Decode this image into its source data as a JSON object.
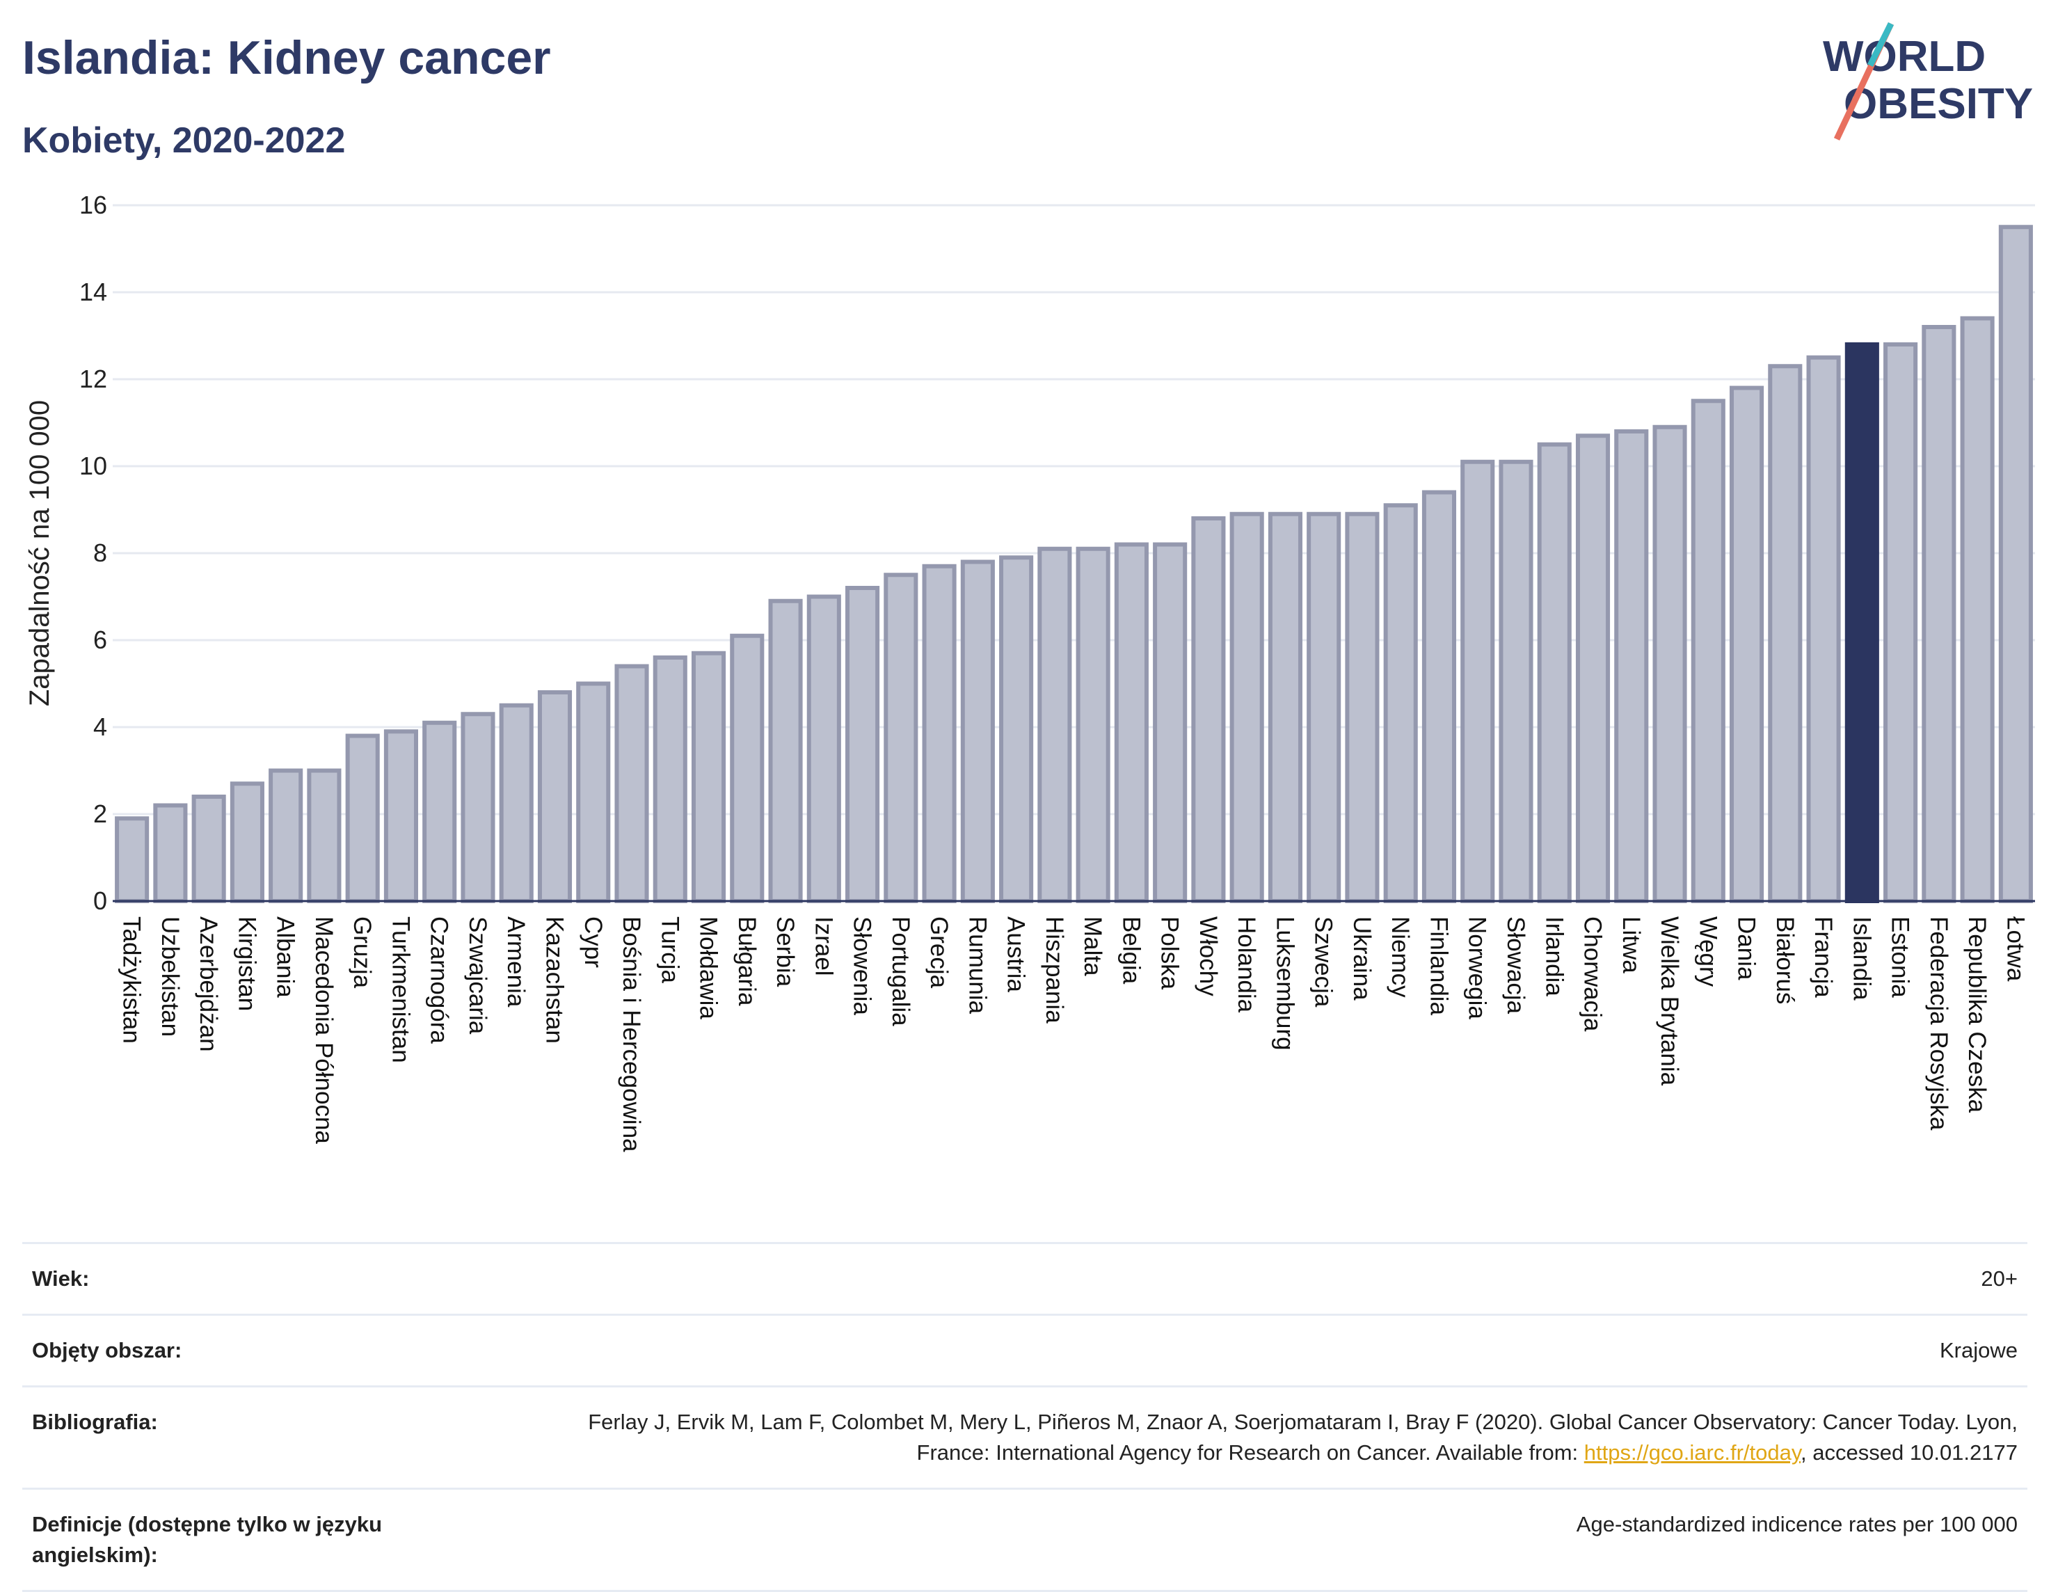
{
  "header": {
    "title": "Islandia: Kidney cancer",
    "subtitle": "Kobiety, 2020-2022"
  },
  "logo": {
    "line1": "WORLD",
    "line2": "OBESITY"
  },
  "colors": {
    "bar": "#bcc0cf",
    "bar_border": "#9498ae",
    "highlight": "#2b3560",
    "grid": "#e6e9f0"
  },
  "chart_data": {
    "type": "bar",
    "title": "Islandia: Kidney cancer",
    "subtitle": "Kobiety, 2020-2022",
    "xlabel": "",
    "ylabel": "Zapadalność na 100 000",
    "ylim": [
      0,
      16
    ],
    "yticks": [
      0,
      2,
      4,
      6,
      8,
      10,
      12,
      14,
      16
    ],
    "grid": true,
    "highlight": "Islandia",
    "categories": [
      "Tadżykistan",
      "Uzbekistan",
      "Azerbejdżan",
      "Kirgistan",
      "Albania",
      "Macedonia Północna",
      "Gruzja",
      "Turkmenistan",
      "Czarnogóra",
      "Szwajcaria",
      "Armenia",
      "Kazachstan",
      "Cypr",
      "Bośnia i Hercegowina",
      "Turcja",
      "Mołdawia",
      "Bułgaria",
      "Serbia",
      "Izrael",
      "Słowenia",
      "Portugalia",
      "Grecja",
      "Rumunia",
      "Austria",
      "Hiszpania",
      "Malta",
      "Belgia",
      "Polska",
      "Włochy",
      "Holandia",
      "Luksemburg",
      "Szwecja",
      "Ukraina",
      "Niemcy",
      "Finlandia",
      "Norwegia",
      "Słowacja",
      "Irlandia",
      "Chorwacja",
      "Litwa",
      "Wielka Brytania",
      "Węgry",
      "Dania",
      "Białoruś",
      "Francja",
      "Islandia",
      "Estonia",
      "Federacja Rosyjska",
      "Republika Czeska",
      "Łotwa"
    ],
    "values": [
      1.9,
      2.2,
      2.4,
      2.7,
      3.0,
      3.0,
      3.8,
      3.9,
      4.1,
      4.3,
      4.5,
      4.8,
      5.0,
      5.4,
      5.6,
      5.7,
      6.1,
      6.9,
      7.0,
      7.2,
      7.5,
      7.7,
      7.8,
      7.9,
      8.1,
      8.1,
      8.2,
      8.2,
      8.8,
      8.9,
      8.9,
      8.9,
      8.9,
      9.1,
      9.4,
      10.1,
      10.1,
      10.5,
      10.7,
      10.8,
      10.9,
      11.5,
      11.8,
      12.3,
      12.5,
      12.8,
      12.8,
      13.2,
      13.4,
      15.5
    ]
  },
  "info": {
    "rows": [
      {
        "key": "Wiek:",
        "value": "20+"
      },
      {
        "key": "Objęty obszar:",
        "value": "Krajowe"
      },
      {
        "key": "Bibliografia:",
        "value": "Ferlay J, Ervik M, Lam F, Colombet M, Mery L, Piñeros M, Znaor A, Soerjomataram I, Bray F (2020). Global Cancer Observatory: Cancer Today. Lyon, France: International Agency for Research on Cancer. Available from: ",
        "link": "https://gco.iarc.fr/today",
        "suffix": ", accessed 10.01.2177"
      },
      {
        "key": "Definicje (dostępne tylko w języku angielskim):",
        "value": "Age-standardized indicence rates per 100 000"
      }
    ]
  }
}
